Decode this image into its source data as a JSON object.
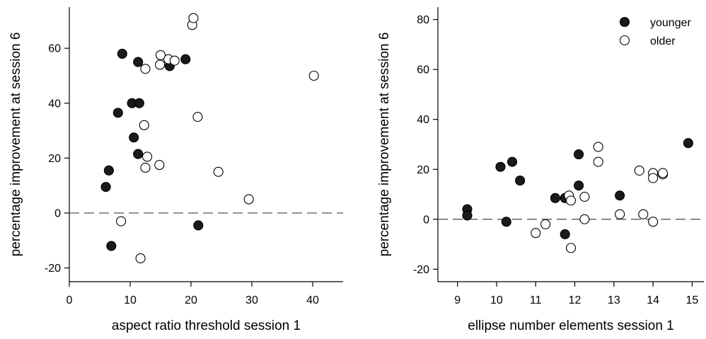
{
  "chart_data": [
    {
      "type": "scatter",
      "xlabel": "aspect ratio threshold session 1",
      "ylabel": "percentage improvement at session 6",
      "xlim": [
        0,
        45
      ],
      "ylim": [
        -25,
        75
      ],
      "xticks": [
        0,
        10,
        20,
        30,
        40
      ],
      "yticks": [
        -20,
        0,
        20,
        40,
        60
      ],
      "reference_line": {
        "y": 0,
        "style": "dashed"
      },
      "series": [
        {
          "marker": "filled",
          "color": "#1a1a1a",
          "points": [
            {
              "x": 6.0,
              "y": 9.5
            },
            {
              "x": 6.5,
              "y": 15.5
            },
            {
              "x": 6.9,
              "y": -12.0
            },
            {
              "x": 8.0,
              "y": 36.5
            },
            {
              "x": 8.7,
              "y": 58.0
            },
            {
              "x": 10.3,
              "y": 40.0
            },
            {
              "x": 10.6,
              "y": 27.5
            },
            {
              "x": 11.3,
              "y": 55.0
            },
            {
              "x": 11.5,
              "y": 40.0
            },
            {
              "x": 11.3,
              "y": 21.5
            },
            {
              "x": 16.5,
              "y": 53.5
            },
            {
              "x": 19.1,
              "y": 56.0
            },
            {
              "x": 21.2,
              "y": -4.5
            }
          ]
        },
        {
          "marker": "open",
          "color": "#ffffff",
          "points": [
            {
              "x": 8.5,
              "y": -3.0
            },
            {
              "x": 11.7,
              "y": -16.5
            },
            {
              "x": 12.3,
              "y": 32.0
            },
            {
              "x": 12.5,
              "y": 16.5
            },
            {
              "x": 12.8,
              "y": 20.5
            },
            {
              "x": 12.5,
              "y": 52.5
            },
            {
              "x": 14.8,
              "y": 17.5
            },
            {
              "x": 14.9,
              "y": 54.0
            },
            {
              "x": 15.0,
              "y": 57.5
            },
            {
              "x": 16.3,
              "y": 56.0
            },
            {
              "x": 17.3,
              "y": 55.5
            },
            {
              "x": 20.2,
              "y": 68.5
            },
            {
              "x": 20.4,
              "y": 71.0
            },
            {
              "x": 21.1,
              "y": 35.0
            },
            {
              "x": 24.5,
              "y": 15.0
            },
            {
              "x": 29.5,
              "y": 5.0
            },
            {
              "x": 40.2,
              "y": 50.0
            }
          ]
        }
      ]
    },
    {
      "type": "scatter",
      "xlabel": "ellipse number elements session 1",
      "ylabel": "percentage improvement at session 6",
      "xlim": [
        8.5,
        15.3
      ],
      "ylim": [
        -25,
        85
      ],
      "xticks": [
        9,
        10,
        11,
        12,
        13,
        14,
        15
      ],
      "yticks": [
        -20,
        0,
        20,
        40,
        60,
        80
      ],
      "reference_line": {
        "y": 0,
        "style": "dashed"
      },
      "legend": {
        "position": "top-right"
      },
      "series": [
        {
          "name": "younger",
          "marker": "filled",
          "color": "#1a1a1a",
          "points": [
            {
              "x": 9.25,
              "y": 4.0
            },
            {
              "x": 9.25,
              "y": 1.5
            },
            {
              "x": 10.1,
              "y": 21.0
            },
            {
              "x": 10.25,
              "y": -1.0
            },
            {
              "x": 10.4,
              "y": 23.0
            },
            {
              "x": 10.6,
              "y": 15.5
            },
            {
              "x": 11.5,
              "y": 8.5
            },
            {
              "x": 11.75,
              "y": 8.5
            },
            {
              "x": 11.75,
              "y": -6.0
            },
            {
              "x": 12.1,
              "y": 26.0
            },
            {
              "x": 12.1,
              "y": 13.5
            },
            {
              "x": 13.15,
              "y": 9.5
            },
            {
              "x": 14.9,
              "y": 30.5
            }
          ]
        },
        {
          "name": "older",
          "marker": "open",
          "color": "#ffffff",
          "points": [
            {
              "x": 11.0,
              "y": -5.5
            },
            {
              "x": 11.25,
              "y": -2.0
            },
            {
              "x": 11.85,
              "y": 9.5
            },
            {
              "x": 11.9,
              "y": 7.5
            },
            {
              "x": 11.9,
              "y": -11.5
            },
            {
              "x": 12.25,
              "y": 9.0
            },
            {
              "x": 12.25,
              "y": 0.0
            },
            {
              "x": 12.6,
              "y": 29.0
            },
            {
              "x": 12.6,
              "y": 23.0
            },
            {
              "x": 13.15,
              "y": 2.0
            },
            {
              "x": 13.65,
              "y": 19.5
            },
            {
              "x": 13.75,
              "y": 2.0
            },
            {
              "x": 14.0,
              "y": 18.5
            },
            {
              "x": 14.0,
              "y": 16.5
            },
            {
              "x": 14.0,
              "y": -1.0
            },
            {
              "x": 14.25,
              "y": 18.0
            },
            {
              "x": 14.25,
              "y": 18.5
            }
          ]
        }
      ]
    }
  ]
}
